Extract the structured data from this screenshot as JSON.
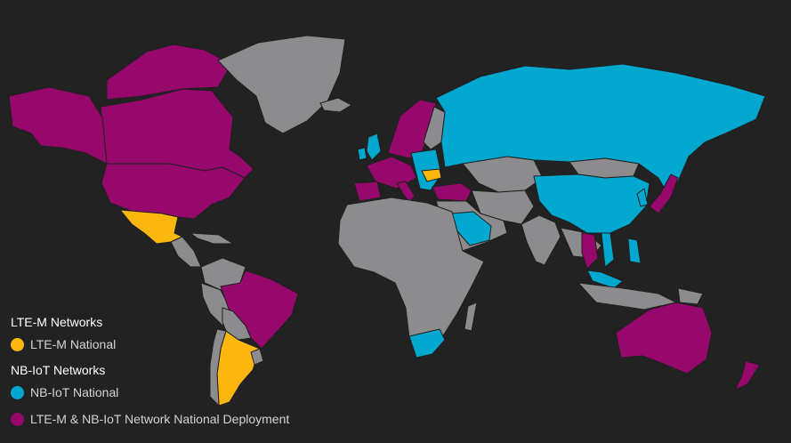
{
  "colors": {
    "background": "#222222",
    "other": "#8c8c8e",
    "lte_m": "#fbb70f",
    "nb_iot": "#00a7cf",
    "both": "#97086d"
  },
  "legend": {
    "lte_m_heading": "LTE-M Networks",
    "lte_m_national": "LTE-M National",
    "nb_iot_heading": "NB-IoT Networks",
    "nb_iot_national": "NB-IoT National",
    "both_label": "LTE-M & NB-IoT Network National Deployment"
  },
  "regions": [
    {
      "name": "canada",
      "category": "both"
    },
    {
      "name": "alaska",
      "category": "both"
    },
    {
      "name": "arctic-islands",
      "category": "both"
    },
    {
      "name": "united-states",
      "category": "both"
    },
    {
      "name": "greenland",
      "category": "other"
    },
    {
      "name": "iceland",
      "category": "other"
    },
    {
      "name": "mexico",
      "category": "lte_m"
    },
    {
      "name": "central-america",
      "category": "other"
    },
    {
      "name": "caribbean",
      "category": "other"
    },
    {
      "name": "colombia-venezuela",
      "category": "other"
    },
    {
      "name": "peru-ecuador",
      "category": "other"
    },
    {
      "name": "brazil",
      "category": "both"
    },
    {
      "name": "bolivia-paraguay",
      "category": "other"
    },
    {
      "name": "argentina",
      "category": "lte_m"
    },
    {
      "name": "chile",
      "category": "other"
    },
    {
      "name": "uruguay",
      "category": "other"
    },
    {
      "name": "norway-sweden",
      "category": "both"
    },
    {
      "name": "finland",
      "category": "other"
    },
    {
      "name": "western-europe",
      "category": "both"
    },
    {
      "name": "spain",
      "category": "both"
    },
    {
      "name": "italy",
      "category": "both"
    },
    {
      "name": "ireland",
      "category": "nb_iot"
    },
    {
      "name": "great-britain",
      "category": "nb_iot"
    },
    {
      "name": "central-europe",
      "category": "nb_iot"
    },
    {
      "name": "romania",
      "category": "lte_m"
    },
    {
      "name": "turkey",
      "category": "both"
    },
    {
      "name": "russia",
      "category": "nb_iot"
    },
    {
      "name": "kazakhstan-central-asia",
      "category": "other"
    },
    {
      "name": "mongolia",
      "category": "other"
    },
    {
      "name": "china",
      "category": "nb_iot"
    },
    {
      "name": "korea",
      "category": "nb_iot"
    },
    {
      "name": "japan",
      "category": "both"
    },
    {
      "name": "middle-east",
      "category": "other"
    },
    {
      "name": "saudi-arabia",
      "category": "nb_iot"
    },
    {
      "name": "iran-afghanistan",
      "category": "other"
    },
    {
      "name": "india",
      "category": "other"
    },
    {
      "name": "southeast-asia",
      "category": "other"
    },
    {
      "name": "thailand",
      "category": "both"
    },
    {
      "name": "vietnam",
      "category": "nb_iot"
    },
    {
      "name": "malaysia",
      "category": "nb_iot"
    },
    {
      "name": "indonesia",
      "category": "other"
    },
    {
      "name": "philippines",
      "category": "nb_iot"
    },
    {
      "name": "africa",
      "category": "other"
    },
    {
      "name": "south-africa",
      "category": "nb_iot"
    },
    {
      "name": "madagascar",
      "category": "other"
    },
    {
      "name": "australia",
      "category": "both"
    },
    {
      "name": "new-zealand",
      "category": "both"
    },
    {
      "name": "papua-new-guinea",
      "category": "other"
    }
  ]
}
